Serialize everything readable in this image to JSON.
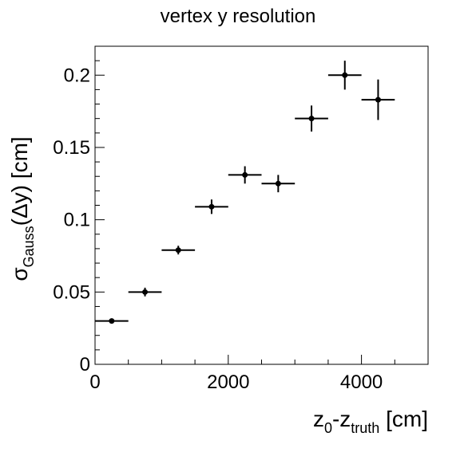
{
  "chart_data": {
    "type": "scatter",
    "title": "vertex y resolution",
    "xlabel": {
      "main": "z",
      "sub0": "0",
      "mid": "-z",
      "sub1": "truth",
      "tail": " [cm]"
    },
    "ylabel": {
      "main": "σ",
      "sub": "Gauss",
      "tail": "(Δy) [cm]"
    },
    "xlim": [
      0,
      5000
    ],
    "ylim": [
      0,
      0.22
    ],
    "xticks": [
      0,
      2000,
      4000
    ],
    "yticks": [
      0,
      0.05,
      0.1,
      0.15,
      0.2
    ],
    "xtick_labels": [
      "0",
      "2000",
      "4000"
    ],
    "ytick_labels": [
      "0",
      "0.05",
      "0.1",
      "0.15",
      "0.2"
    ],
    "grid": false,
    "series": [
      {
        "points": [
          {
            "x": 250,
            "y": 0.03,
            "xerr": 250,
            "yerr": 0.0015
          },
          {
            "x": 750,
            "y": 0.05,
            "xerr": 250,
            "yerr": 0.003
          },
          {
            "x": 1250,
            "y": 0.079,
            "xerr": 250,
            "yerr": 0.003
          },
          {
            "x": 1750,
            "y": 0.109,
            "xerr": 250,
            "yerr": 0.005
          },
          {
            "x": 2250,
            "y": 0.131,
            "xerr": 250,
            "yerr": 0.006
          },
          {
            "x": 2750,
            "y": 0.125,
            "xerr": 250,
            "yerr": 0.006
          },
          {
            "x": 3250,
            "y": 0.17,
            "xerr": 250,
            "yerr": 0.009
          },
          {
            "x": 3750,
            "y": 0.2,
            "xerr": 250,
            "yerr": 0.01
          },
          {
            "x": 4250,
            "y": 0.183,
            "xerr": 250,
            "yerr": 0.014
          }
        ]
      }
    ]
  }
}
